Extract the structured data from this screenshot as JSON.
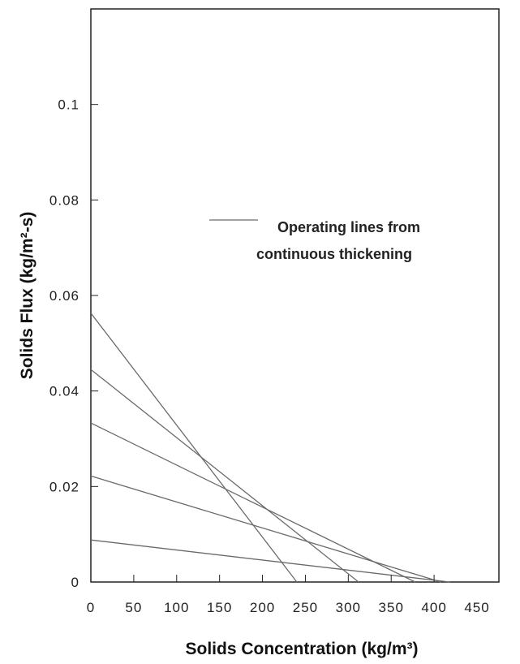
{
  "chart_data": {
    "type": "line",
    "title": "",
    "xlabel": "Solids Concentration (kg/m³)",
    "ylabel": "Solids Flux (kg/m²-s)",
    "xlim": [
      0,
      450
    ],
    "ylim": [
      0,
      0.12
    ],
    "x_ticks": [
      0,
      50,
      100,
      150,
      200,
      250,
      300,
      350,
      400,
      450
    ],
    "x_tick_labels": [
      "0",
      "50",
      "100",
      "150",
      "200",
      "250",
      "300",
      "350",
      "400",
      "450"
    ],
    "y_ticks": [
      0,
      0.02,
      0.04,
      0.06,
      0.08,
      0.1
    ],
    "y_tick_labels": [
      "0",
      "0.02",
      "0.04",
      "0.06",
      "0.08",
      "0.1"
    ],
    "grid": false,
    "legend": {
      "position": "middle-right",
      "lines": [
        "Operating lines from",
        "continuous thickening"
      ]
    },
    "series": [
      {
        "values": [
          [
            0,
            0.0563
          ],
          [
            240,
            0
          ]
        ]
      },
      {
        "values": [
          [
            0,
            0.0445
          ],
          [
            312,
            0
          ]
        ]
      },
      {
        "values": [
          [
            0,
            0.0333
          ],
          [
            378,
            0
          ]
        ]
      },
      {
        "values": [
          [
            0,
            0.0222
          ],
          [
            408,
            0
          ]
        ]
      },
      {
        "values": [
          [
            0,
            0.0088
          ],
          [
            418,
            0
          ]
        ]
      }
    ],
    "line_color": "#6a6a6a"
  }
}
